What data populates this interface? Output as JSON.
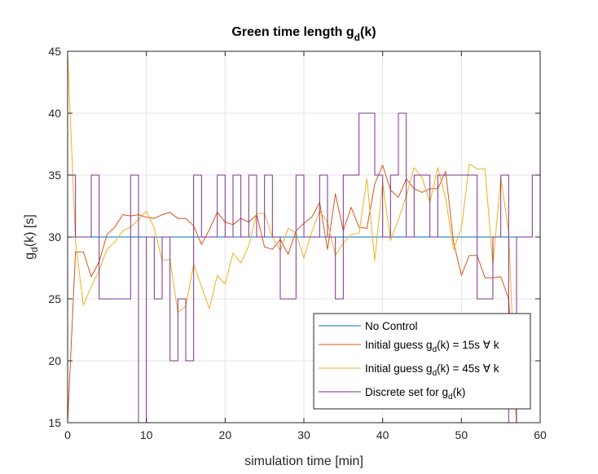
{
  "chart_data": {
    "type": "line",
    "title": "Green time length g",
    "title_sub": "d",
    "title_tail": "(k)",
    "xlabel": "simulation time [min]",
    "ylabel": "g",
    "ylabel_sub": "d",
    "ylabel_tail": "(k) [s]",
    "xlim": [
      0,
      60
    ],
    "ylim": [
      15,
      45
    ],
    "xticks": [
      "0",
      "10",
      "20",
      "30",
      "40",
      "50",
      "60"
    ],
    "yticks": [
      "15",
      "20",
      "25",
      "30",
      "35",
      "40",
      "45"
    ],
    "xtick_values": [
      0,
      10,
      20,
      30,
      40,
      50,
      60
    ],
    "ytick_values": [
      15,
      20,
      25,
      30,
      35,
      40,
      45
    ],
    "grid": true,
    "legend_position": "bottom-right",
    "series": [
      {
        "name": "No Control",
        "color": "#0072BD",
        "style": "line",
        "x": [
          0,
          59
        ],
        "y": [
          30,
          30
        ]
      },
      {
        "name": "Initial guess g",
        "name_sub": "d",
        "name_tail": "(k) = 15s ∀ k",
        "color": "#D95319",
        "style": "line",
        "x": [
          0,
          1,
          2,
          3,
          4,
          5,
          6,
          7,
          8,
          9,
          10,
          11,
          12,
          13,
          14,
          15,
          16,
          17,
          18,
          19,
          20,
          21,
          22,
          23,
          24,
          25,
          26,
          27,
          28,
          29,
          30,
          31,
          32,
          33,
          34,
          35,
          36,
          37,
          38,
          39,
          40,
          41,
          42,
          43,
          44,
          45,
          46,
          47,
          48,
          49,
          50,
          51,
          52,
          53,
          54,
          55,
          56,
          57,
          58,
          59
        ],
        "y": [
          15,
          28.8,
          28.8,
          26.8,
          28,
          30.2,
          30.8,
          31.8,
          31.7,
          31.8,
          31.6,
          31.5,
          31.8,
          32,
          31.5,
          31.5,
          30.9,
          29.4,
          30.6,
          32,
          31.2,
          31,
          31.5,
          31.2,
          31.8,
          29.2,
          29,
          29.8,
          28.6,
          30.5,
          31.1,
          31.6,
          32.8,
          29,
          33.5,
          30.5,
          32.4,
          30.8,
          30.7,
          34.3,
          35.8,
          33.8,
          33.2,
          34.7,
          33.9,
          33.6,
          33.9,
          33.9,
          35.3,
          29.6,
          26.9,
          28.5,
          28.5,
          26.7,
          26.7,
          26.8,
          25,
          15,
          15,
          15
        ]
      },
      {
        "name": "Initial guess g",
        "name_sub": "d",
        "name_tail": "(k) = 45s ∀ k",
        "color": "#EDB120",
        "style": "line",
        "x": [
          0,
          1,
          2,
          3,
          4,
          5,
          6,
          7,
          8,
          9,
          10,
          11,
          12,
          13,
          14,
          15,
          16,
          17,
          18,
          19,
          20,
          21,
          22,
          23,
          24,
          25,
          26,
          27,
          28,
          29,
          30,
          31,
          32,
          33,
          34,
          35,
          36,
          37,
          38,
          39,
          40,
          41,
          42,
          43,
          44,
          45,
          46,
          47,
          48,
          49,
          50,
          51,
          52,
          53,
          54,
          55,
          56,
          57,
          58,
          59
        ],
        "y": [
          45,
          29.6,
          24.5,
          26,
          27.3,
          29,
          29.6,
          30.5,
          30.8,
          31.4,
          32.1,
          30.7,
          28.1,
          28.2,
          23.9,
          24.4,
          27.8,
          26,
          24.2,
          26.9,
          26.2,
          28.7,
          27.9,
          29.3,
          31.9,
          31.9,
          30,
          28.9,
          30.7,
          30.3,
          28.3,
          30.4,
          32.1,
          31.2,
          28.5,
          29.5,
          30.2,
          30.3,
          34.7,
          28.1,
          34.4,
          29.7,
          31.4,
          33.3,
          35.6,
          34.8,
          32.8,
          35.6,
          33.1,
          29,
          30.7,
          35.9,
          35.5,
          35.5,
          27.7,
          34.8,
          30.4,
          15,
          15,
          15
        ]
      },
      {
        "name": "Discrete set for g",
        "name_sub": "d",
        "name_tail": "(k)",
        "color": "#7E2F8E",
        "style": "step",
        "x": [
          0,
          1,
          2,
          3,
          4,
          5,
          6,
          7,
          8,
          9,
          10,
          11,
          12,
          13,
          14,
          15,
          16,
          17,
          18,
          19,
          20,
          21,
          22,
          23,
          24,
          25,
          26,
          27,
          28,
          29,
          30,
          31,
          32,
          33,
          34,
          35,
          36,
          37,
          38,
          39,
          40,
          41,
          42,
          43,
          44,
          45,
          46,
          47,
          48,
          49,
          50,
          51,
          52,
          53,
          54,
          55,
          56,
          57,
          58,
          59
        ],
        "y": [
          35,
          30,
          30,
          35,
          25,
          25,
          25,
          25,
          35,
          15,
          30,
          25,
          30,
          20,
          25,
          20,
          35,
          30,
          30,
          35,
          30,
          35,
          30,
          35,
          30,
          35,
          30,
          25,
          25,
          35,
          30,
          30,
          35,
          30,
          25,
          35,
          35,
          40,
          40,
          35,
          30,
          35,
          40,
          30,
          35,
          35,
          30,
          35,
          35,
          35,
          35,
          35,
          25,
          25,
          30,
          35,
          15,
          30,
          30,
          35
        ]
      }
    ]
  }
}
